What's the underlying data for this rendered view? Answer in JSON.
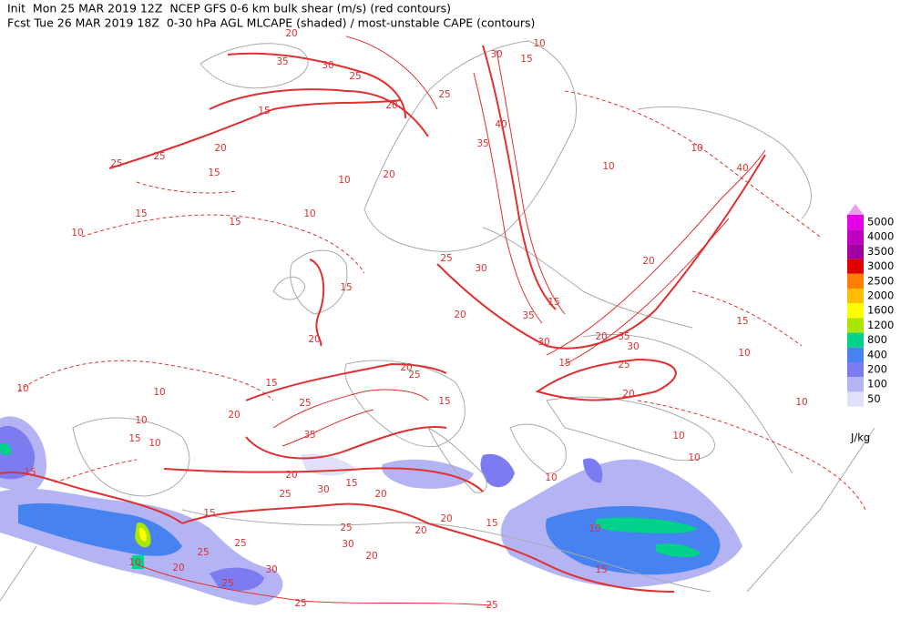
{
  "header": {
    "line1": "Init  Mon 25 MAR 2019 12Z  NCEP GFS 0-6 km bulk shear (m/s) (red contours)",
    "line2": "Fcst Tue 26 MAR 2019 18Z  0-30 hPa AGL MLCAPE (shaded) / most-unstable CAPE (contours)"
  },
  "legend": {
    "levels": [
      {
        "label": "5000",
        "color": "#e600e6"
      },
      {
        "label": "4000",
        "color": "#c000c0"
      },
      {
        "label": "3500",
        "color": "#a000a0"
      },
      {
        "label": "3000",
        "color": "#e00000"
      },
      {
        "label": "2500",
        "color": "#ff7f00"
      },
      {
        "label": "2000",
        "color": "#ffbf00"
      },
      {
        "label": "1600",
        "color": "#ffff00"
      },
      {
        "label": "1200",
        "color": "#aae600"
      },
      {
        "label": "800",
        "color": "#00d28c"
      },
      {
        "label": "400",
        "color": "#4682f0"
      },
      {
        "label": "200",
        "color": "#7c7cf0"
      },
      {
        "label": "100",
        "color": "#b4b4f4"
      },
      {
        "label": "50",
        "color": "#e0e0fa"
      }
    ],
    "top_color": "#e6a0e6",
    "unit": "J/kg"
  },
  "contour_labels": [
    20,
    35,
    30,
    25,
    30,
    15,
    10,
    25,
    20,
    15,
    40,
    35,
    20,
    25,
    25,
    15,
    10,
    20,
    10,
    10,
    40,
    15,
    15,
    10,
    10,
    25,
    30,
    20,
    15,
    15,
    20,
    35,
    20,
    15,
    20,
    35,
    30,
    30,
    10,
    15,
    20,
    25,
    25,
    15,
    25,
    10,
    10,
    15,
    20,
    20,
    10,
    35,
    15,
    10,
    10,
    10,
    15,
    20,
    15,
    30,
    10,
    10,
    25,
    20,
    15,
    20,
    25,
    20,
    10,
    30,
    25,
    25,
    10,
    20,
    30,
    15,
    25,
    25,
    25,
    20,
    15
  ]
}
